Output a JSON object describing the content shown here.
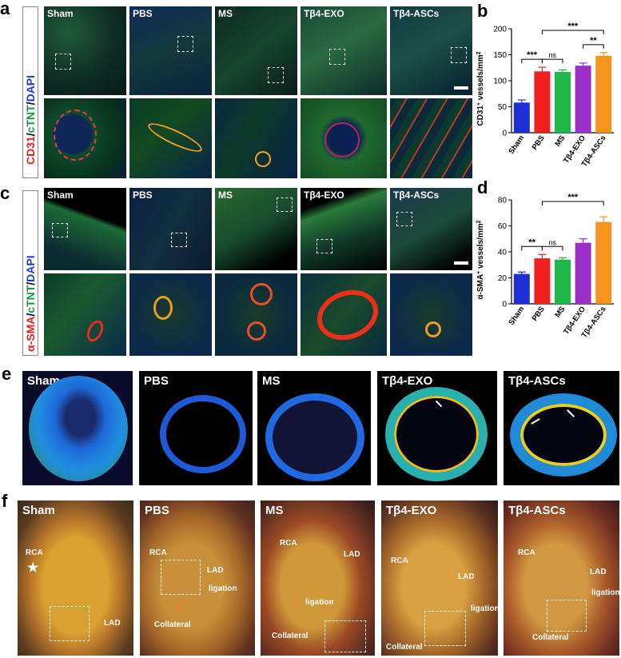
{
  "panels": {
    "a": "a",
    "b": "b",
    "c": "c",
    "d": "d",
    "e": "e",
    "f": "f"
  },
  "groups": [
    "Sham",
    "PBS",
    "MS",
    "Tβ4-EXO",
    "Tβ4-ASCs"
  ],
  "stain_a": {
    "red": "CD31",
    "sep1": "/",
    "green": "cTNT",
    "sep2": "/",
    "blue": "DAPI"
  },
  "stain_c": {
    "red": "α-SMA",
    "sep1": "/",
    "green": "cTNT",
    "sep2": "/",
    "blue": "DAPI"
  },
  "colors": {
    "Sham": "#1f2fd6",
    "PBS": "#f0211e",
    "MS": "#1fb84a",
    "Tβ4-EXO": "#9a2fc9",
    "Tβ4-ASCs": "#f7941d",
    "stain_red": "#e8201d",
    "stain_green": "#1a9a3a",
    "stain_blue": "#1a3fd8"
  },
  "panel_f_annotations": {
    "rca": "RCA",
    "lad": "LAD",
    "ligation": "ligation",
    "collateral": "Collateral"
  },
  "chart_data": [
    {
      "type": "bar",
      "panel": "b",
      "categories": [
        "Sham",
        "PBS",
        "MS",
        "Tβ4-EXO",
        "Tβ4-ASCs"
      ],
      "values": [
        58,
        118,
        117,
        129,
        148
      ],
      "errors": [
        5,
        8,
        4,
        5,
        6
      ],
      "ylabel_main": "CD31",
      "ylabel_sup": "+",
      "ylabel_rest": " vessels/mm",
      "ylabel_sup2": "2",
      "ylim": [
        0,
        200
      ],
      "yticks": [
        "0",
        "50",
        "100",
        "150",
        "200"
      ],
      "significance": [
        {
          "from": 0,
          "to": 1,
          "label": "***"
        },
        {
          "from": 1,
          "to": 2,
          "label": "ns"
        },
        {
          "from": 3,
          "to": 4,
          "label": "**"
        },
        {
          "from": 1,
          "to": 4,
          "label": "***"
        }
      ]
    },
    {
      "type": "bar",
      "panel": "d",
      "categories": [
        "Sham",
        "PBS",
        "MS",
        "Tβ4-EXO",
        "Tβ4-ASCs"
      ],
      "values": [
        23,
        35,
        34,
        47,
        63
      ],
      "errors": [
        1.5,
        3,
        1.5,
        3,
        4
      ],
      "ylabel_main": "α-SMA",
      "ylabel_sup": "+",
      "ylabel_rest": " vessels/mm",
      "ylabel_sup2": "2",
      "ylim": [
        0,
        80
      ],
      "yticks": [
        "0",
        "20",
        "40",
        "60",
        "80"
      ],
      "significance": [
        {
          "from": 0,
          "to": 1,
          "label": "**"
        },
        {
          "from": 1,
          "to": 2,
          "label": "ns"
        },
        {
          "from": 1,
          "to": 4,
          "label": "***"
        }
      ]
    }
  ]
}
